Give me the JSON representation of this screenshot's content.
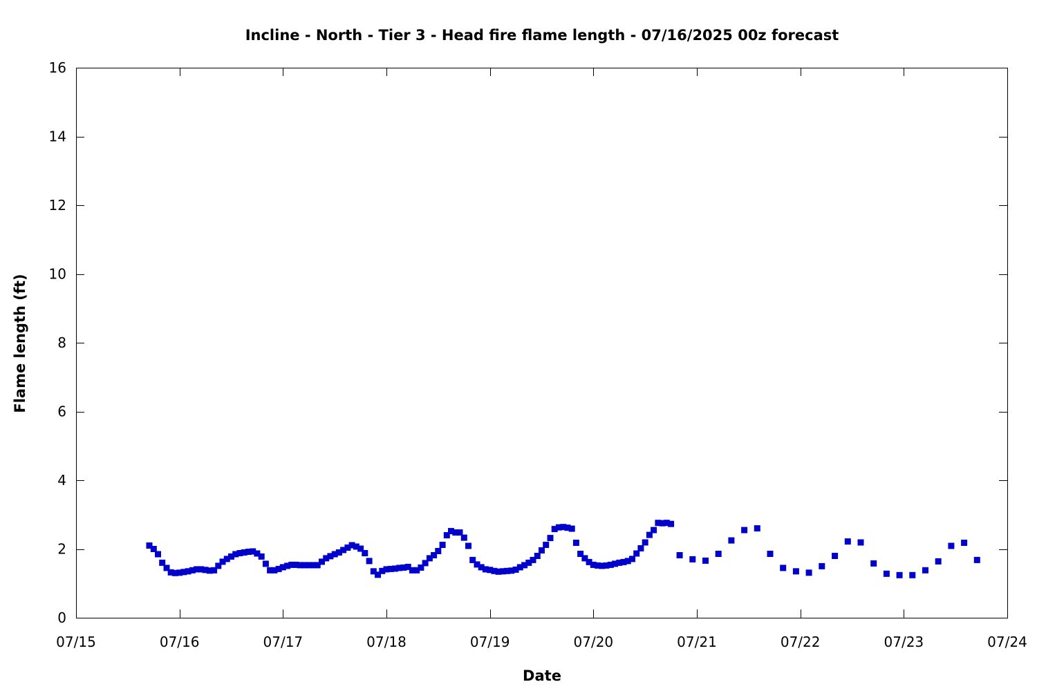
{
  "chart_data": {
    "type": "scatter",
    "title": "Incline - North - Tier 3 - Head fire flame length - 07/16/2025 00z forecast",
    "xlabel": "Date",
    "ylabel": "Flame length (ft)",
    "xlim": [
      "07/15",
      "07/24"
    ],
    "ylim": [
      0,
      16
    ],
    "x_ticks": [
      "07/15",
      "07/16",
      "07/17",
      "07/18",
      "07/19",
      "07/20",
      "07/21",
      "07/22",
      "07/23",
      "07/24"
    ],
    "y_ticks": [
      0,
      2,
      4,
      6,
      8,
      10,
      12,
      14,
      16
    ],
    "grid": false,
    "marker": "square",
    "color": "#0000cc",
    "series": [
      {
        "points": [
          [
            "07/15 17:00",
            2.1
          ],
          [
            "07/15 18:00",
            2.0
          ],
          [
            "07/15 19:00",
            1.85
          ],
          [
            "07/15 20:00",
            1.6
          ],
          [
            "07/15 21:00",
            1.45
          ],
          [
            "07/15 22:00",
            1.32
          ],
          [
            "07/15 23:00",
            1.3
          ],
          [
            "07/16 00:00",
            1.31
          ],
          [
            "07/16 01:00",
            1.33
          ],
          [
            "07/16 02:00",
            1.35
          ],
          [
            "07/16 03:00",
            1.38
          ],
          [
            "07/16 04:00",
            1.41
          ],
          [
            "07/16 05:00",
            1.41
          ],
          [
            "07/16 06:00",
            1.39
          ],
          [
            "07/16 07:00",
            1.37
          ],
          [
            "07/16 08:00",
            1.38
          ],
          [
            "07/16 09:00",
            1.51
          ],
          [
            "07/16 10:00",
            1.63
          ],
          [
            "07/16 11:00",
            1.71
          ],
          [
            "07/16 12:00",
            1.78
          ],
          [
            "07/16 13:00",
            1.85
          ],
          [
            "07/16 14:00",
            1.88
          ],
          [
            "07/16 15:00",
            1.9
          ],
          [
            "07/16 16:00",
            1.92
          ],
          [
            "07/16 17:00",
            1.93
          ],
          [
            "07/16 18:00",
            1.87
          ],
          [
            "07/16 19:00",
            1.78
          ],
          [
            "07/16 20:00",
            1.57
          ],
          [
            "07/16 21:00",
            1.38
          ],
          [
            "07/16 22:00",
            1.38
          ],
          [
            "07/16 23:00",
            1.42
          ],
          [
            "07/17 00:00",
            1.47
          ],
          [
            "07/17 01:00",
            1.51
          ],
          [
            "07/17 02:00",
            1.54
          ],
          [
            "07/17 03:00",
            1.54
          ],
          [
            "07/17 04:00",
            1.53
          ],
          [
            "07/17 05:00",
            1.53
          ],
          [
            "07/17 06:00",
            1.53
          ],
          [
            "07/17 07:00",
            1.53
          ],
          [
            "07/17 08:00",
            1.53
          ],
          [
            "07/17 09:00",
            1.63
          ],
          [
            "07/17 10:00",
            1.73
          ],
          [
            "07/17 11:00",
            1.79
          ],
          [
            "07/17 12:00",
            1.85
          ],
          [
            "07/17 13:00",
            1.9
          ],
          [
            "07/17 14:00",
            1.97
          ],
          [
            "07/17 15:00",
            2.04
          ],
          [
            "07/17 16:00",
            2.11
          ],
          [
            "07/17 17:00",
            2.07
          ],
          [
            "07/17 18:00",
            2.01
          ],
          [
            "07/17 19:00",
            1.88
          ],
          [
            "07/17 20:00",
            1.65
          ],
          [
            "07/17 21:00",
            1.35
          ],
          [
            "07/17 22:00",
            1.25
          ],
          [
            "07/17 23:00",
            1.36
          ],
          [
            "07/18 00:00",
            1.41
          ],
          [
            "07/18 01:00",
            1.42
          ],
          [
            "07/18 02:00",
            1.43
          ],
          [
            "07/18 03:00",
            1.45
          ],
          [
            "07/18 04:00",
            1.46
          ],
          [
            "07/18 05:00",
            1.48
          ],
          [
            "07/18 06:00",
            1.38
          ],
          [
            "07/18 07:00",
            1.38
          ],
          [
            "07/18 08:00",
            1.46
          ],
          [
            "07/18 09:00",
            1.59
          ],
          [
            "07/18 10:00",
            1.73
          ],
          [
            "07/18 11:00",
            1.82
          ],
          [
            "07/18 12:00",
            1.94
          ],
          [
            "07/18 13:00",
            2.12
          ],
          [
            "07/18 14:00",
            2.4
          ],
          [
            "07/18 15:00",
            2.52
          ],
          [
            "07/18 16:00",
            2.48
          ],
          [
            "07/18 17:00",
            2.48
          ],
          [
            "07/18 18:00",
            2.33
          ],
          [
            "07/18 19:00",
            2.09
          ],
          [
            "07/18 20:00",
            1.68
          ],
          [
            "07/18 21:00",
            1.55
          ],
          [
            "07/18 22:00",
            1.47
          ],
          [
            "07/18 23:00",
            1.41
          ],
          [
            "07/19 00:00",
            1.39
          ],
          [
            "07/19 01:00",
            1.36
          ],
          [
            "07/19 02:00",
            1.34
          ],
          [
            "07/19 03:00",
            1.35
          ],
          [
            "07/19 04:00",
            1.36
          ],
          [
            "07/19 05:00",
            1.37
          ],
          [
            "07/19 06:00",
            1.4
          ],
          [
            "07/19 07:00",
            1.47
          ],
          [
            "07/19 08:00",
            1.53
          ],
          [
            "07/19 09:00",
            1.6
          ],
          [
            "07/19 10:00",
            1.68
          ],
          [
            "07/19 11:00",
            1.8
          ],
          [
            "07/19 12:00",
            1.96
          ],
          [
            "07/19 13:00",
            2.12
          ],
          [
            "07/19 14:00",
            2.32
          ],
          [
            "07/19 15:00",
            2.58
          ],
          [
            "07/19 16:00",
            2.63
          ],
          [
            "07/19 17:00",
            2.64
          ],
          [
            "07/19 18:00",
            2.62
          ],
          [
            "07/19 19:00",
            2.59
          ],
          [
            "07/19 20:00",
            2.18
          ],
          [
            "07/19 21:00",
            1.86
          ],
          [
            "07/19 22:00",
            1.73
          ],
          [
            "07/19 23:00",
            1.62
          ],
          [
            "07/20 00:00",
            1.54
          ],
          [
            "07/20 01:00",
            1.52
          ],
          [
            "07/20 02:00",
            1.51
          ],
          [
            "07/20 03:00",
            1.52
          ],
          [
            "07/20 04:00",
            1.54
          ],
          [
            "07/20 05:00",
            1.57
          ],
          [
            "07/20 06:00",
            1.6
          ],
          [
            "07/20 07:00",
            1.62
          ],
          [
            "07/20 08:00",
            1.65
          ],
          [
            "07/20 09:00",
            1.71
          ],
          [
            "07/20 10:00",
            1.87
          ],
          [
            "07/20 11:00",
            2.02
          ],
          [
            "07/20 12:00",
            2.19
          ],
          [
            "07/20 13:00",
            2.41
          ],
          [
            "07/20 14:00",
            2.55
          ],
          [
            "07/20 15:00",
            2.76
          ],
          [
            "07/20 16:00",
            2.75
          ],
          [
            "07/20 17:00",
            2.76
          ],
          [
            "07/20 18:00",
            2.73
          ],
          [
            "07/20 20:00",
            1.82
          ],
          [
            "07/20 23:00",
            1.7
          ],
          [
            "07/21 02:00",
            1.66
          ],
          [
            "07/21 05:00",
            1.86
          ],
          [
            "07/21 08:00",
            2.25
          ],
          [
            "07/21 11:00",
            2.55
          ],
          [
            "07/21 14:00",
            2.6
          ],
          [
            "07/21 17:00",
            1.86
          ],
          [
            "07/21 20:00",
            1.45
          ],
          [
            "07/21 23:00",
            1.35
          ],
          [
            "07/22 02:00",
            1.31
          ],
          [
            "07/22 05:00",
            1.5
          ],
          [
            "07/22 08:00",
            1.8
          ],
          [
            "07/22 11:00",
            2.22
          ],
          [
            "07/22 14:00",
            2.19
          ],
          [
            "07/22 17:00",
            1.58
          ],
          [
            "07/22 20:00",
            1.28
          ],
          [
            "07/22 23:00",
            1.24
          ],
          [
            "07/23 02:00",
            1.24
          ],
          [
            "07/23 05:00",
            1.38
          ],
          [
            "07/23 08:00",
            1.64
          ],
          [
            "07/23 11:00",
            2.09
          ],
          [
            "07/23 14:00",
            2.18
          ],
          [
            "07/23 17:00",
            1.68
          ]
        ]
      }
    ]
  }
}
